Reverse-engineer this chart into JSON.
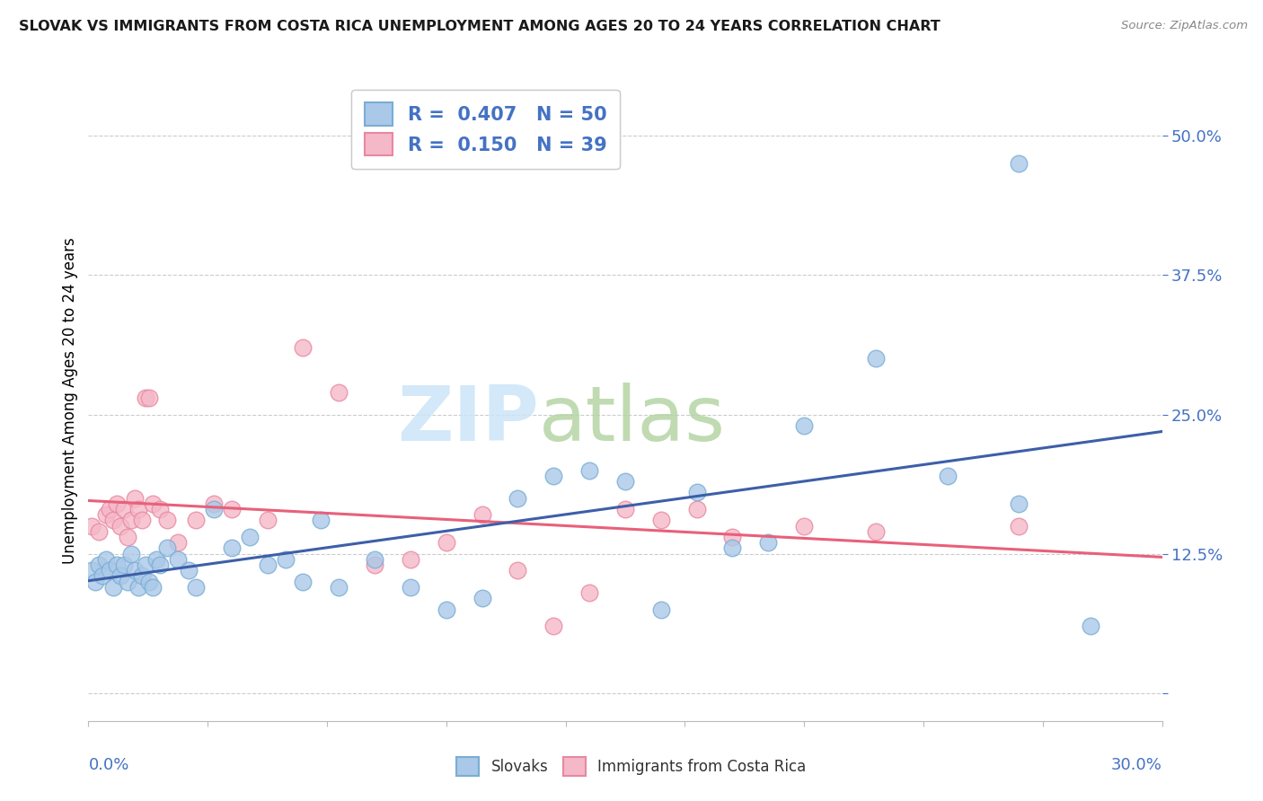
{
  "title": "SLOVAK VS IMMIGRANTS FROM COSTA RICA UNEMPLOYMENT AMONG AGES 20 TO 24 YEARS CORRELATION CHART",
  "source": "Source: ZipAtlas.com",
  "ylabel": "Unemployment Among Ages 20 to 24 years",
  "xlim": [
    0.0,
    0.3
  ],
  "ylim": [
    -0.025,
    0.55
  ],
  "yticks": [
    0.0,
    0.125,
    0.25,
    0.375,
    0.5
  ],
  "ytick_labels": [
    "",
    "12.5%",
    "25.0%",
    "37.5%",
    "50.0%"
  ],
  "line_blue": "#3d5fa8",
  "line_pink": "#e8607a",
  "blue_fill": "#aac8e8",
  "blue_edge": "#7aadd4",
  "pink_fill": "#f5b8c8",
  "pink_edge": "#e888a0",
  "watermark_zip_color": "#c8dff0",
  "watermark_atlas_color": "#b8d8b8",
  "slovaks_x": [
    0.001,
    0.002,
    0.003,
    0.004,
    0.005,
    0.006,
    0.007,
    0.008,
    0.009,
    0.01,
    0.011,
    0.012,
    0.013,
    0.014,
    0.015,
    0.016,
    0.017,
    0.018,
    0.019,
    0.02,
    0.022,
    0.025,
    0.028,
    0.03,
    0.035,
    0.04,
    0.045,
    0.05,
    0.055,
    0.06,
    0.065,
    0.07,
    0.08,
    0.09,
    0.1,
    0.11,
    0.12,
    0.13,
    0.14,
    0.15,
    0.16,
    0.17,
    0.18,
    0.19,
    0.2,
    0.22,
    0.24,
    0.26,
    0.28,
    0.26
  ],
  "slovaks_y": [
    0.11,
    0.1,
    0.115,
    0.105,
    0.12,
    0.11,
    0.095,
    0.115,
    0.105,
    0.115,
    0.1,
    0.125,
    0.11,
    0.095,
    0.105,
    0.115,
    0.1,
    0.095,
    0.12,
    0.115,
    0.13,
    0.12,
    0.11,
    0.095,
    0.165,
    0.13,
    0.14,
    0.115,
    0.12,
    0.1,
    0.155,
    0.095,
    0.12,
    0.095,
    0.075,
    0.085,
    0.175,
    0.195,
    0.2,
    0.19,
    0.075,
    0.18,
    0.13,
    0.135,
    0.24,
    0.3,
    0.195,
    0.17,
    0.06,
    0.475
  ],
  "costarica_x": [
    0.001,
    0.003,
    0.005,
    0.006,
    0.007,
    0.008,
    0.009,
    0.01,
    0.011,
    0.012,
    0.013,
    0.014,
    0.015,
    0.016,
    0.017,
    0.018,
    0.02,
    0.022,
    0.025,
    0.03,
    0.035,
    0.04,
    0.05,
    0.06,
    0.07,
    0.08,
    0.09,
    0.1,
    0.11,
    0.12,
    0.13,
    0.14,
    0.15,
    0.16,
    0.17,
    0.18,
    0.2,
    0.22,
    0.26
  ],
  "costarica_y": [
    0.15,
    0.145,
    0.16,
    0.165,
    0.155,
    0.17,
    0.15,
    0.165,
    0.14,
    0.155,
    0.175,
    0.165,
    0.155,
    0.265,
    0.265,
    0.17,
    0.165,
    0.155,
    0.135,
    0.155,
    0.17,
    0.165,
    0.155,
    0.31,
    0.27,
    0.115,
    0.12,
    0.135,
    0.16,
    0.11,
    0.06,
    0.09,
    0.165,
    0.155,
    0.165,
    0.14,
    0.15,
    0.145,
    0.15
  ]
}
